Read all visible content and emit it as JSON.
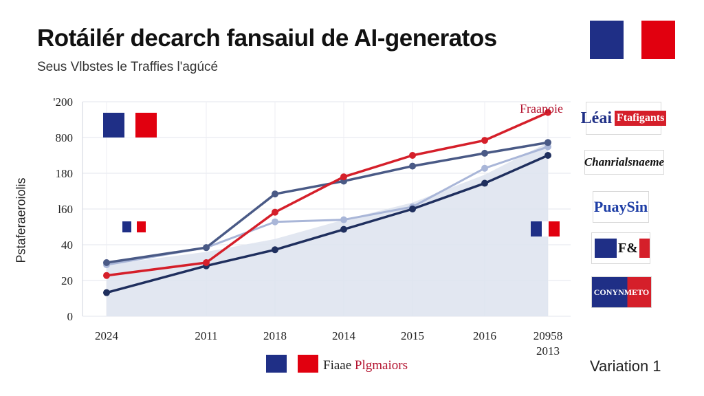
{
  "header": {
    "title": "Rotáilér decarch fansaiul de AI-generatos",
    "subtitle": "Seus Vlbstes le Traffies l'agúcé"
  },
  "footer": {
    "legend_text_a": "Fiaae",
    "legend_text_b": "Plgmaiors",
    "variation": "Variation 1"
  },
  "logos": [
    {
      "text": "Léai",
      "text2": "Ftafigants",
      "icon": "newspaper-logo"
    },
    {
      "text": "Chanrialsnaeme",
      "icon": "newspaper-logo"
    },
    {
      "text": "PuaySin",
      "icon": "newspaper-logo"
    },
    {
      "text": "F&",
      "icon": "newspaper-logo"
    },
    {
      "text": "CONYNMETO",
      "icon": "newspaper-logo"
    }
  ],
  "colors": {
    "red": "#d51f2a",
    "navy": "#1f2f5e",
    "slate": "#4a5a86",
    "light": "#a9b6d8",
    "area": "#dde3ef",
    "flag_blue": "#1f2f86",
    "flag_red": "#e1000f"
  },
  "chart_data": {
    "type": "line",
    "title": "Rotáilér decarch fansaiul de AI-generatos",
    "subtitle": "Seus Vlbstes le Traffies l'agúcé",
    "ylabel": "Pstaferaeroiolis",
    "x_ticks": [
      "2024",
      "2011",
      "2018",
      "2014",
      "2015",
      "2016",
      "20958\n2013"
    ],
    "y_ticks": [
      "0",
      "20",
      "40",
      "l60",
      "180",
      "800",
      "'200"
    ],
    "annotation": "Fraanoie",
    "series": [
      {
        "color": "#d51f2a",
        "values": [
          19,
          25,
          48.5,
          65,
          75,
          82,
          95
        ]
      },
      {
        "color": "#1f2f5e",
        "values": [
          11,
          23.5,
          31,
          40.5,
          50,
          62,
          75
        ]
      },
      {
        "color": "#4a5a86",
        "values": [
          25,
          32,
          57,
          63,
          70,
          76,
          81
        ]
      },
      {
        "color": "#a9b6d8",
        "values": [
          24,
          32,
          44,
          45,
          51,
          69,
          79
        ]
      }
    ],
    "area_values": [
      24,
      30,
      36,
      45,
      53,
      66,
      81
    ],
    "ylim": [
      0,
      100
    ],
    "grid": true
  }
}
